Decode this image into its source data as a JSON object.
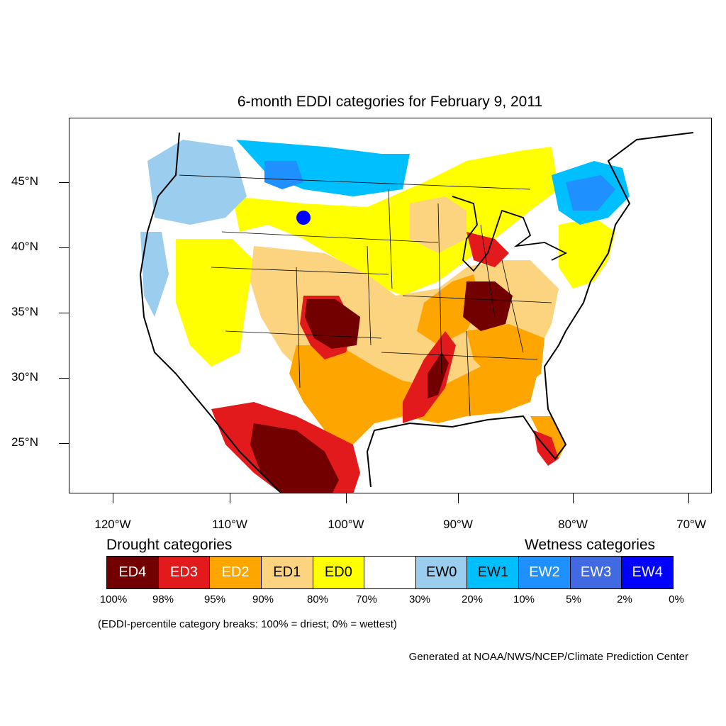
{
  "title": "6-month EDDI categories for February 9, 2011",
  "axes": {
    "lat_labels": [
      "45°N",
      "40°N",
      "35°N",
      "30°N",
      "25°N"
    ],
    "lon_labels": [
      "120°W",
      "110°W",
      "100°W",
      "90°W",
      "80°W",
      "70°W"
    ]
  },
  "legend": {
    "drought_heading": "Drought categories",
    "wetness_heading": "Wetness categories",
    "categories": [
      {
        "label": "ED4",
        "color": "#730000",
        "text_color": "#ffffff"
      },
      {
        "label": "ED3",
        "color": "#e31a1c",
        "text_color": "#ffffff"
      },
      {
        "label": "ED2",
        "color": "#ffa500",
        "text_color": "#ffffff"
      },
      {
        "label": "ED1",
        "color": "#fcd37f",
        "text_color": "#000000"
      },
      {
        "label": "ED0",
        "color": "#ffff00",
        "text_color": "#000000"
      },
      {
        "label": "",
        "color": "#ffffff",
        "text_color": "#000000"
      },
      {
        "label": "EW0",
        "color": "#9bcdef",
        "text_color": "#000000"
      },
      {
        "label": "EW1",
        "color": "#00bfff",
        "text_color": "#000000"
      },
      {
        "label": "EW2",
        "color": "#1e90ff",
        "text_color": "#ffffff"
      },
      {
        "label": "EW3",
        "color": "#4169e1",
        "text_color": "#ffffff"
      },
      {
        "label": "EW4",
        "color": "#0000ff",
        "text_color": "#ffffff"
      }
    ],
    "breaks": [
      "100%",
      "98%",
      "95%",
      "90%",
      "80%",
      "70%",
      "30%",
      "20%",
      "10%",
      "5%",
      "2%",
      "0%"
    ]
  },
  "note": "(EDDI-percentile category breaks: 100% = driest; 0% = wettest)",
  "credit": "Generated at NOAA/NWS/NCEP/Climate Prediction Center"
}
